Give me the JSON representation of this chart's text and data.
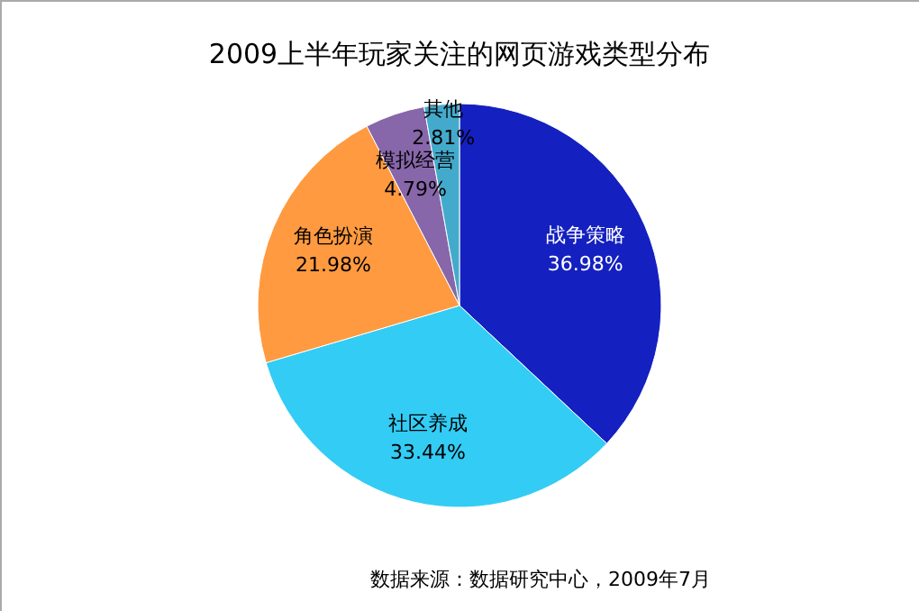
{
  "chart_data": {
    "type": "pie",
    "title": "2009上半年玩家关注的网页游戏类型分布",
    "categories": [
      "战争策略",
      "社区养成",
      "角色扮演",
      "模拟经营",
      "其他"
    ],
    "values": [
      36.98,
      33.44,
      21.98,
      4.79,
      2.81
    ],
    "value_labels": [
      "36.98%",
      "33.44%",
      "21.98%",
      "4.79%",
      "2.81%"
    ],
    "colors": [
      "#1420c0",
      "#33ccf5",
      "#ff9a40",
      "#8866aa",
      "#44aacc"
    ],
    "annotations": [
      "数据来源：数据研究中心，2009年7月"
    ]
  }
}
